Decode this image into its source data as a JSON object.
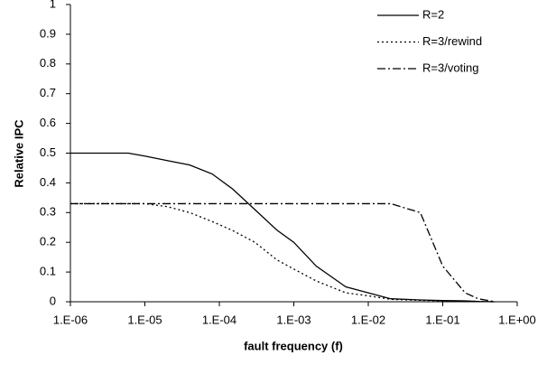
{
  "chart_data": {
    "type": "line",
    "x_label": "fault frequency (f)",
    "y_label": "Relative IPC",
    "x_scale": "log",
    "x": [
      1e-06,
      6e-06,
      1e-05,
      2e-05,
      4e-05,
      8e-05,
      0.00015,
      0.0003,
      0.0006,
      0.001,
      0.002,
      0.005,
      0.01,
      0.02,
      0.05,
      0.1,
      0.2,
      0.3,
      0.5
    ],
    "series": [
      {
        "name": "R=2",
        "color": "#000000",
        "style": "solid",
        "values": [
          0.5,
          0.5,
          0.49,
          0.475,
          0.46,
          0.43,
          0.38,
          0.31,
          0.24,
          0.2,
          0.12,
          0.05,
          0.03,
          0.01,
          0.006,
          0.004,
          0.003,
          0.001,
          0
        ]
      },
      {
        "name": "R=3/rewind",
        "color": "#000000",
        "style": "dotted",
        "values": [
          0.33,
          0.33,
          0.33,
          0.32,
          0.3,
          0.27,
          0.24,
          0.2,
          0.14,
          0.11,
          0.07,
          0.03,
          0.02,
          0.008,
          0.005,
          0.003,
          0.002,
          0.001,
          0
        ]
      },
      {
        "name": "R=3/voting",
        "color": "#000000",
        "style": "dash-dot",
        "values": [
          0.33,
          0.33,
          0.33,
          0.33,
          0.33,
          0.33,
          0.33,
          0.33,
          0.33,
          0.33,
          0.33,
          0.33,
          0.33,
          0.33,
          0.3,
          0.12,
          0.03,
          0.01,
          0
        ]
      }
    ],
    "xlim": [
      1e-06,
      1
    ],
    "ylim": [
      0,
      1
    ],
    "xticks": [
      {
        "value": 1e-06,
        "label": "1.E-06"
      },
      {
        "value": 1e-05,
        "label": "1.E-05"
      },
      {
        "value": 0.0001,
        "label": "1.E-04"
      },
      {
        "value": 0.001,
        "label": "1.E-03"
      },
      {
        "value": 0.01,
        "label": "1.E-02"
      },
      {
        "value": 0.1,
        "label": "1.E-01"
      },
      {
        "value": 1,
        "label": "1.E+00"
      }
    ],
    "yticks": [
      0,
      0.1,
      0.2,
      0.3,
      0.4,
      0.5,
      0.6,
      0.7,
      0.8,
      0.9,
      1
    ],
    "legend": "top-right"
  }
}
